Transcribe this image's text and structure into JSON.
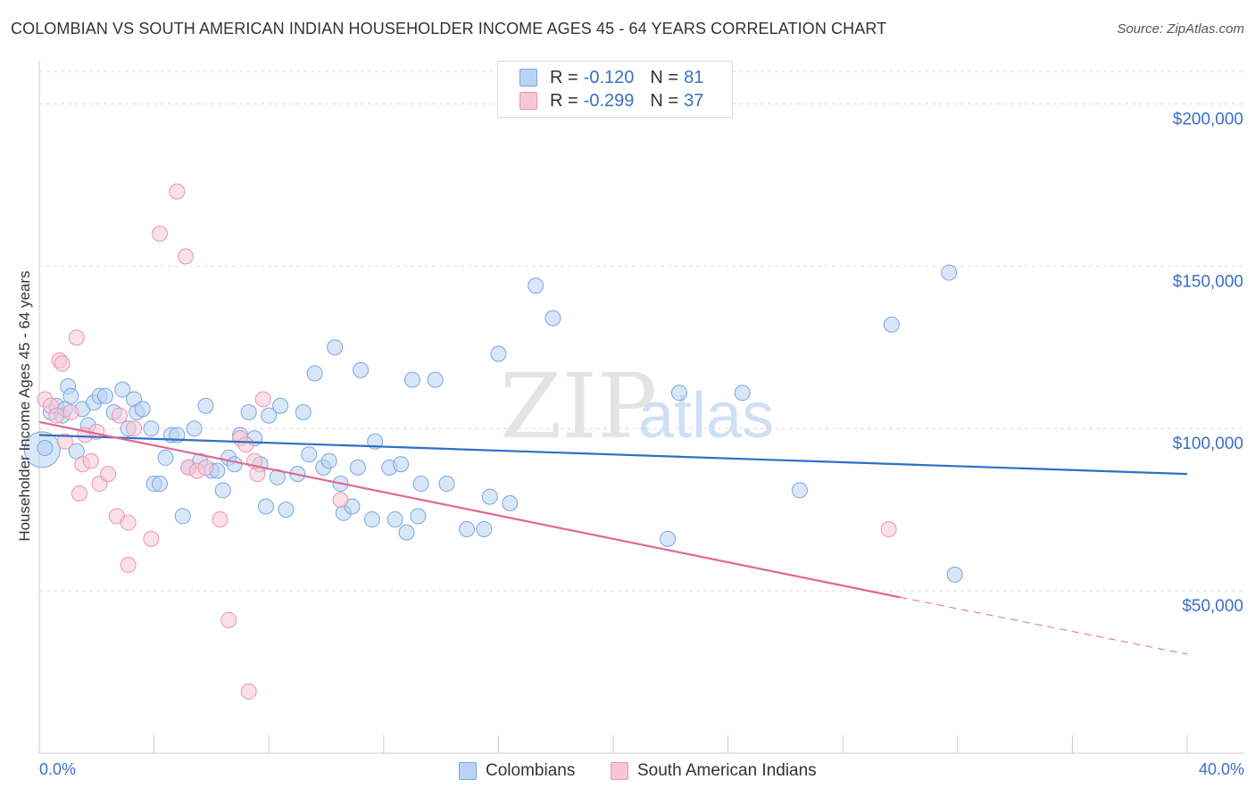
{
  "title": "COLOMBIAN VS SOUTH AMERICAN INDIAN HOUSEHOLDER INCOME AGES 45 - 64 YEARS CORRELATION CHART",
  "source": "Source: ZipAtlas.com",
  "watermark": {
    "zip": "ZIP",
    "atlas": "atlas"
  },
  "legend": {
    "row1": {
      "r_label": "R =",
      "r_value": "-0.120",
      "n_label": "N =",
      "n_value": "81"
    },
    "row2": {
      "r_label": "R =",
      "r_value": "-0.299",
      "n_label": "N =",
      "n_value": "37"
    }
  },
  "colors": {
    "blue_fill": "#b8d3f3",
    "blue_stroke": "#7aa6dd",
    "blue_line": "#2f6fc6",
    "pink_fill": "#f7c6d6",
    "pink_stroke": "#ec93b0",
    "pink_line": "#e0688f",
    "axis_text": "#3a70c4",
    "grid": "#dddddd"
  },
  "chart_data": {
    "type": "scatter",
    "title": "COLOMBIAN VS SOUTH AMERICAN INDIAN HOUSEHOLDER INCOME AGES 45 - 64 YEARS CORRELATION CHART",
    "xlabel": "",
    "ylabel": "Householder Income Ages 45 - 64 years",
    "xlim": [
      0,
      40
    ],
    "ylim": [
      0,
      210000
    ],
    "x_tick_labels": [
      "0.0%",
      "40.0%"
    ],
    "y_ticks": [
      50000,
      100000,
      150000,
      200000
    ],
    "y_tick_labels": [
      "$50,000",
      "$100,000",
      "$150,000",
      "$200,000"
    ],
    "grid": "horizontal dashed",
    "series": [
      {
        "name": "Colombians",
        "r": -0.12,
        "n": 81,
        "points": [
          [
            0.2,
            94000
          ],
          [
            0.4,
            105000
          ],
          [
            0.6,
            107000
          ],
          [
            0.8,
            104000
          ],
          [
            0.9,
            106000
          ],
          [
            1.0,
            113000
          ],
          [
            1.1,
            110000
          ],
          [
            1.3,
            93000
          ],
          [
            1.5,
            106000
          ],
          [
            1.7,
            101000
          ],
          [
            1.9,
            108000
          ],
          [
            2.1,
            110000
          ],
          [
            2.3,
            110000
          ],
          [
            2.6,
            105000
          ],
          [
            2.9,
            112000
          ],
          [
            3.1,
            100000
          ],
          [
            3.3,
            109000
          ],
          [
            3.4,
            105000
          ],
          [
            3.6,
            106000
          ],
          [
            3.9,
            100000
          ],
          [
            4.0,
            83000
          ],
          [
            4.2,
            83000
          ],
          [
            4.4,
            91000
          ],
          [
            4.6,
            98000
          ],
          [
            4.8,
            98000
          ],
          [
            5.0,
            73000
          ],
          [
            5.2,
            88000
          ],
          [
            5.4,
            100000
          ],
          [
            5.6,
            90000
          ],
          [
            5.8,
            107000
          ],
          [
            6.0,
            87000
          ],
          [
            6.2,
            87000
          ],
          [
            6.4,
            81000
          ],
          [
            6.6,
            91000
          ],
          [
            6.8,
            89000
          ],
          [
            7.0,
            98000
          ],
          [
            7.3,
            105000
          ],
          [
            7.5,
            97000
          ],
          [
            7.7,
            89000
          ],
          [
            7.9,
            76000
          ],
          [
            8.0,
            104000
          ],
          [
            8.3,
            85000
          ],
          [
            8.4,
            107000
          ],
          [
            8.6,
            75000
          ],
          [
            9.0,
            86000
          ],
          [
            9.2,
            105000
          ],
          [
            9.4,
            92000
          ],
          [
            9.6,
            117000
          ],
          [
            9.9,
            88000
          ],
          [
            10.1,
            90000
          ],
          [
            10.3,
            125000
          ],
          [
            10.5,
            83000
          ],
          [
            10.6,
            74000
          ],
          [
            10.9,
            76000
          ],
          [
            11.1,
            88000
          ],
          [
            11.2,
            118000
          ],
          [
            11.6,
            72000
          ],
          [
            11.7,
            96000
          ],
          [
            12.2,
            88000
          ],
          [
            12.4,
            72000
          ],
          [
            12.6,
            89000
          ],
          [
            12.8,
            68000
          ],
          [
            13.0,
            115000
          ],
          [
            13.2,
            73000
          ],
          [
            13.3,
            83000
          ],
          [
            13.8,
            115000
          ],
          [
            14.2,
            83000
          ],
          [
            14.9,
            69000
          ],
          [
            15.5,
            69000
          ],
          [
            15.7,
            79000
          ],
          [
            16.0,
            123000
          ],
          [
            16.4,
            77000
          ],
          [
            17.3,
            144000
          ],
          [
            17.9,
            134000
          ],
          [
            21.9,
            66000
          ],
          [
            22.3,
            111000
          ],
          [
            24.5,
            111000
          ],
          [
            26.5,
            81000
          ],
          [
            29.7,
            132000
          ],
          [
            31.7,
            148000
          ],
          [
            31.9,
            55000
          ]
        ]
      },
      {
        "name": "South American Indians",
        "r": -0.299,
        "n": 37,
        "points": [
          [
            0.2,
            109000
          ],
          [
            0.4,
            107000
          ],
          [
            0.6,
            104000
          ],
          [
            0.7,
            121000
          ],
          [
            0.8,
            120000
          ],
          [
            0.9,
            96000
          ],
          [
            1.1,
            105000
          ],
          [
            1.3,
            128000
          ],
          [
            1.4,
            80000
          ],
          [
            1.5,
            89000
          ],
          [
            1.6,
            98000
          ],
          [
            1.8,
            90000
          ],
          [
            2.0,
            99000
          ],
          [
            2.1,
            83000
          ],
          [
            2.4,
            86000
          ],
          [
            2.7,
            73000
          ],
          [
            2.8,
            104000
          ],
          [
            3.1,
            71000
          ],
          [
            3.1,
            58000
          ],
          [
            3.3,
            100000
          ],
          [
            3.9,
            66000
          ],
          [
            4.2,
            160000
          ],
          [
            4.8,
            173000
          ],
          [
            5.1,
            153000
          ],
          [
            5.2,
            88000
          ],
          [
            5.5,
            87000
          ],
          [
            5.8,
            88000
          ],
          [
            6.3,
            72000
          ],
          [
            6.6,
            41000
          ],
          [
            7.0,
            97000
          ],
          [
            7.2,
            95000
          ],
          [
            7.3,
            19000
          ],
          [
            7.6,
            86000
          ],
          [
            7.8,
            109000
          ],
          [
            10.5,
            78000
          ],
          [
            29.6,
            69000
          ],
          [
            7.5,
            90000
          ]
        ]
      }
    ],
    "trend_lines": [
      {
        "series": "Colombians",
        "x": [
          0,
          40
        ],
        "y": [
          98000,
          86000
        ],
        "style": "solid"
      },
      {
        "series": "South American Indians",
        "x": [
          0,
          30
        ],
        "y": [
          102000,
          48000
        ],
        "style": "solid"
      },
      {
        "series": "South American Indians",
        "x": [
          30,
          40
        ],
        "y": [
          48000,
          30500
        ],
        "style": "dashed"
      }
    ]
  },
  "bottom_legend": [
    {
      "label": "Colombians"
    },
    {
      "label": "South American Indians"
    }
  ]
}
